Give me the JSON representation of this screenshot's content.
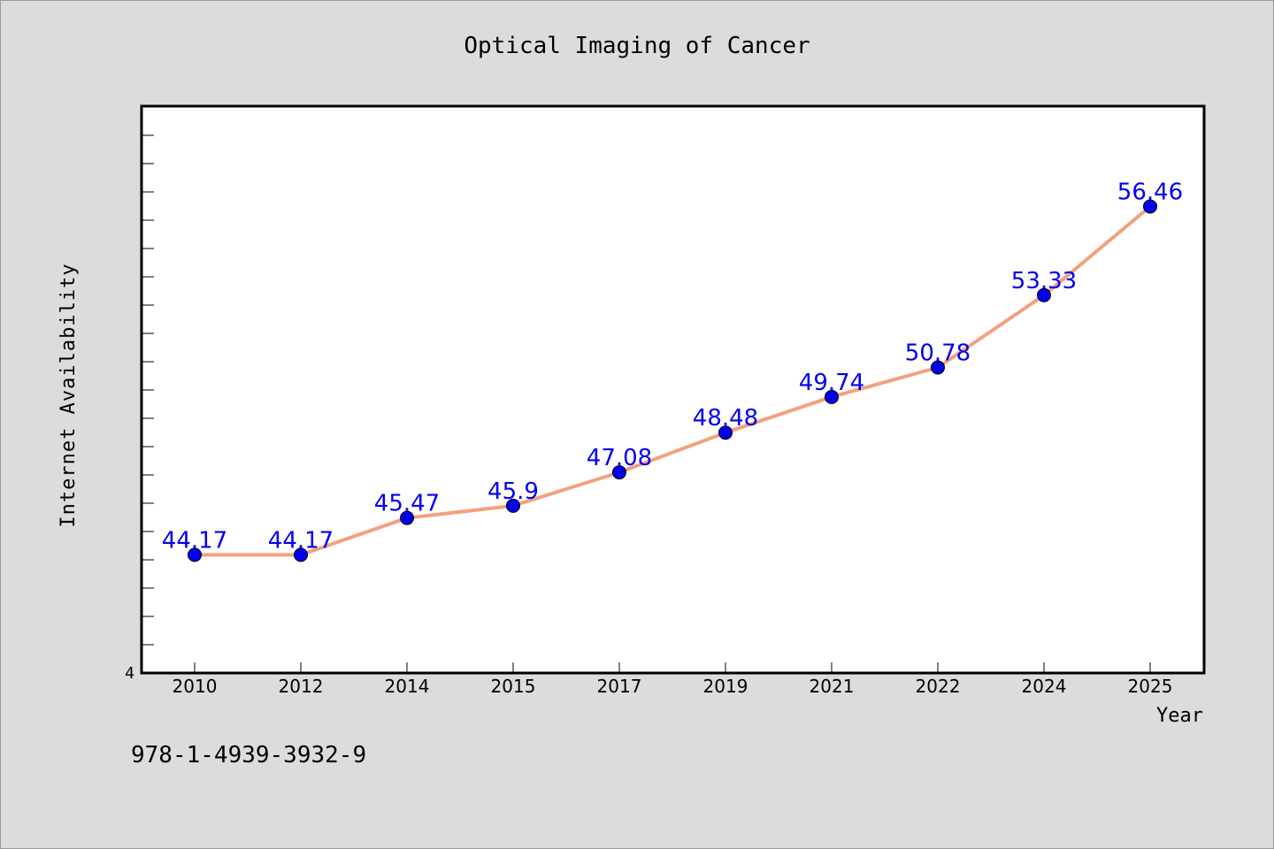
{
  "chart_data": {
    "type": "line",
    "title": "Optical Imaging of Cancer",
    "xlabel": "Year",
    "ylabel": "Internet Availability",
    "categories": [
      "2010",
      "2012",
      "2014",
      "2015",
      "2017",
      "2019",
      "2021",
      "2022",
      "2024",
      "2025"
    ],
    "series": [
      {
        "values": [
          44.17,
          44.17,
          45.47,
          45.9,
          47.08,
          48.48,
          49.74,
          50.78,
          53.33,
          56.46
        ],
        "labels": [
          "44.17",
          "44.17",
          "45.47",
          "45.9",
          "47.08",
          "48.48",
          "49.74",
          "50.78",
          "53.33",
          "56.46"
        ],
        "line_color": "#f4a07e",
        "marker_color": "#0000ee",
        "label_color": "#0000ee"
      }
    ],
    "ylim": [
      40,
      60
    ],
    "y_tick_labels": [
      "4"
    ],
    "grid": false,
    "legend": "none"
  },
  "footer_text": "978-1-4939-3932-9",
  "colors": {
    "background": "#dcdcdc",
    "plot_background": "#ffffff",
    "axis": "#000000"
  }
}
